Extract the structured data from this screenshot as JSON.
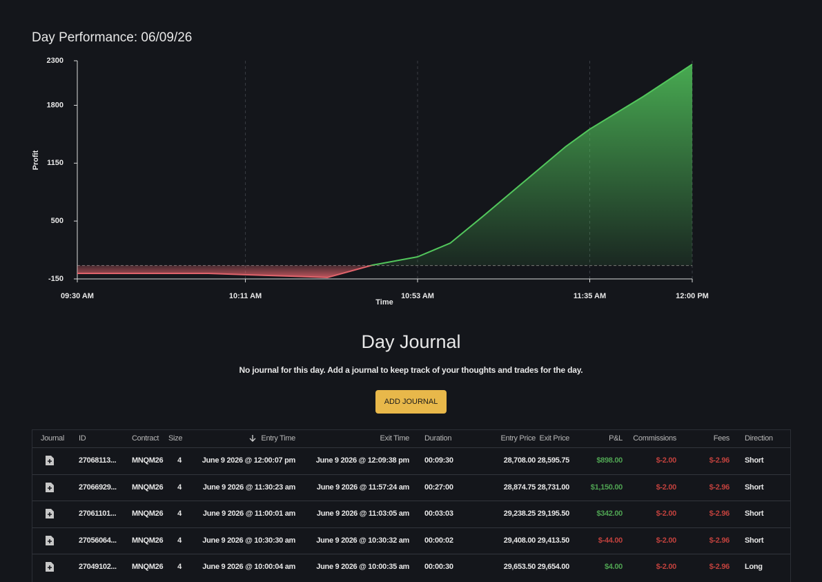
{
  "header": {
    "title": "Day Performance: 06/09/26"
  },
  "chart_data": {
    "type": "line",
    "x_label": "Time",
    "y_label": "Profit",
    "x": [
      "09:30 AM",
      "10:02 AM",
      "10:11 AM",
      "10:22 AM",
      "10:31 AM",
      "10:42 AM",
      "10:53 AM",
      "11:01 AM",
      "11:09 AM",
      "11:19 AM",
      "11:29 AM",
      "11:35 AM",
      "11:48 AM",
      "12:00 PM"
    ],
    "values": [
      -88,
      -88,
      -103,
      -119,
      -134,
      5,
      98,
      253,
      555,
      943,
      1331,
      1532,
      1897,
      2261
    ],
    "xlim": [
      "09:30 AM",
      "12:00 PM"
    ],
    "xticks": [
      "09:30 AM",
      "10:11 AM",
      "10:53 AM",
      "11:35 AM",
      "12:00 PM"
    ],
    "ylim": [
      -150,
      2300
    ],
    "yticks": [
      -150,
      500,
      1150,
      1800,
      2300
    ],
    "grid": true,
    "color": "#52c75c",
    "negative_color": "#e0636b"
  },
  "journal": {
    "title": "Day Journal",
    "message": "No journal for this day. Add a journal to keep track of your thoughts and trades for the day.",
    "button": "ADD JOURNAL"
  },
  "table": {
    "columns": [
      "Journal",
      "ID",
      "Contract",
      "Size",
      "Entry Time",
      "Exit Time",
      "Duration",
      "Entry Price",
      "Exit Price",
      "P&L",
      "Commissions",
      "Fees",
      "Direction"
    ],
    "rows": [
      [
        "27068113...",
        "MNQM26",
        "4",
        "June 9 2026 @ 12:00:07 pm",
        "June 9 2026 @ 12:09:38 pm",
        "00:09:30",
        "28,708.00",
        "28,595.75",
        "$898.00",
        "$-2.00",
        "$-2.96",
        "Short"
      ],
      [
        "27066929...",
        "MNQM26",
        "4",
        "June 9 2026 @ 11:30:23 am",
        "June 9 2026 @ 11:57:24 am",
        "00:27:00",
        "28,874.75",
        "28,731.00",
        "$1,150.00",
        "$-2.00",
        "$-2.96",
        "Short"
      ],
      [
        "27061101...",
        "MNQM26",
        "4",
        "June 9 2026 @ 11:00:01 am",
        "June 9 2026 @ 11:03:05 am",
        "00:03:03",
        "29,238.25",
        "29,195.50",
        "$342.00",
        "$-2.00",
        "$-2.96",
        "Short"
      ],
      [
        "27056064...",
        "MNQM26",
        "4",
        "June 9 2026 @ 10:30:30 am",
        "June 9 2026 @ 10:30:32 am",
        "00:00:02",
        "29,408.00",
        "29,413.50",
        "$-44.00",
        "$-2.00",
        "$-2.96",
        "Short"
      ],
      [
        "27049102...",
        "MNQM26",
        "4",
        "June 9 2026 @ 10:00:04 am",
        "June 9 2026 @ 10:00:35 am",
        "00:00:30",
        "29,653.50",
        "29,654.00",
        "$4.00",
        "$-2.00",
        "$-2.96",
        "Long"
      ]
    ]
  }
}
